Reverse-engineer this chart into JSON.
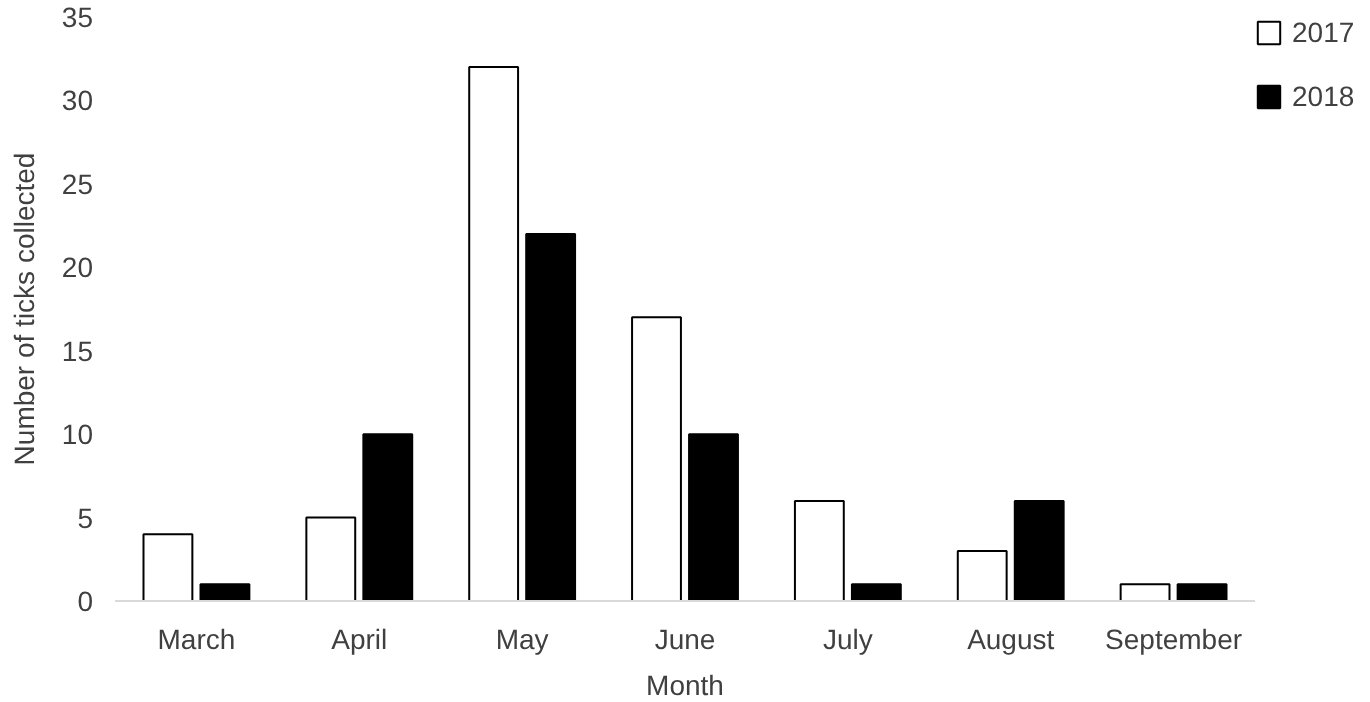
{
  "chart_data": {
    "type": "bar",
    "xlabel": "Month",
    "ylabel": "Number of ticks collected",
    "categories": [
      "March",
      "April",
      "May",
      "June",
      "July",
      "August",
      "September"
    ],
    "series": [
      {
        "name": "2017",
        "color": "#ffffff",
        "values": [
          4,
          5,
          32,
          17,
          6,
          3,
          1
        ]
      },
      {
        "name": "2018",
        "color": "#000000",
        "values": [
          1,
          10,
          22,
          10,
          1,
          6,
          1
        ]
      }
    ],
    "ylim": [
      0,
      35
    ],
    "yticks": [
      0,
      5,
      10,
      15,
      20,
      25,
      30,
      35
    ],
    "grid": false,
    "legend": "top right"
  }
}
